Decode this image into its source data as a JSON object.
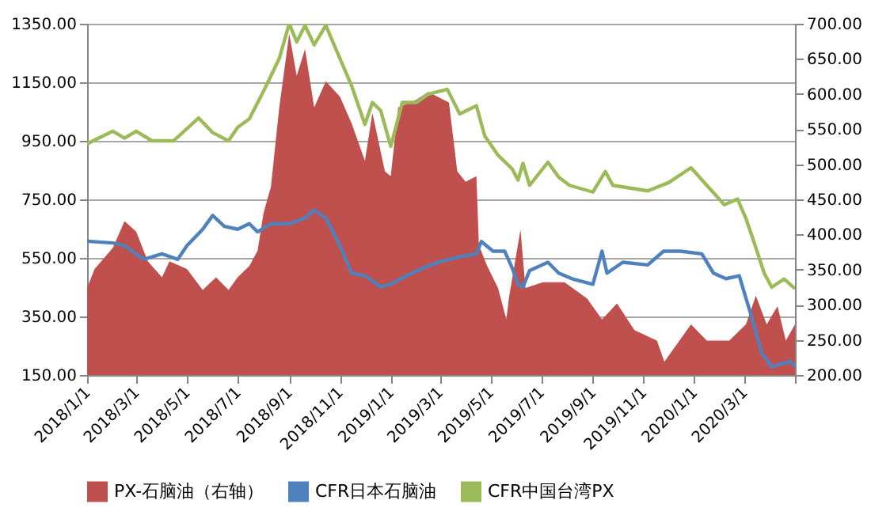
{
  "chart_data": {
    "type": "line",
    "xlim": [
      "2018-01-01",
      "2020-05-01"
    ],
    "xticks": [
      {
        "value": "2018-01-01",
        "label": "2018/1/1"
      },
      {
        "value": "2018-03-01",
        "label": "2018/3/1"
      },
      {
        "value": "2018-05-01",
        "label": "2018/5/1"
      },
      {
        "value": "2018-07-01",
        "label": "2018/7/1"
      },
      {
        "value": "2018-09-01",
        "label": "2018/9/1"
      },
      {
        "value": "2018-11-01",
        "label": "2018/11/1"
      },
      {
        "value": "2019-01-01",
        "label": "2019/1/1"
      },
      {
        "value": "2019-03-01",
        "label": "2019/3/1"
      },
      {
        "value": "2019-05-01",
        "label": "2019/5/1"
      },
      {
        "value": "2019-07-01",
        "label": "2019/7/1"
      },
      {
        "value": "2019-09-01",
        "label": "2019/9/1"
      },
      {
        "value": "2019-11-01",
        "label": "2019/11/1"
      },
      {
        "value": "2020-01-01",
        "label": "2020/1/1"
      },
      {
        "value": "2020-03-01",
        "label": "2020/3/1"
      },
      {
        "value": "2020-05-01",
        "label": null
      }
    ],
    "ylim": [
      150,
      1350
    ],
    "yticks": [
      {
        "value": 150,
        "label": "150.00"
      },
      {
        "value": 350,
        "label": "350.00"
      },
      {
        "value": 550,
        "label": "550.00"
      },
      {
        "value": 750,
        "label": "750.00"
      },
      {
        "value": 950,
        "label": "950.00"
      },
      {
        "value": 1150,
        "label": "1150.00"
      },
      {
        "value": 1350,
        "label": "1350.00"
      }
    ],
    "y2lim": [
      200,
      700
    ],
    "y2ticks": [
      {
        "value": 200,
        "label": "200.00"
      },
      {
        "value": 250,
        "label": "250.00"
      },
      {
        "value": 300,
        "label": "300.00"
      },
      {
        "value": 350,
        "label": "350.00"
      },
      {
        "value": 400,
        "label": "400.00"
      },
      {
        "value": 450,
        "label": "450.00"
      },
      {
        "value": 500,
        "label": "500.00"
      },
      {
        "value": 550,
        "label": "550.00"
      },
      {
        "value": 600,
        "label": "600.00"
      },
      {
        "value": 650,
        "label": "650.00"
      },
      {
        "value": 700,
        "label": "700.00"
      }
    ],
    "grid": "y",
    "legend": "bottom",
    "marker": "none",
    "series": [
      {
        "name": "PX-石脑油（右轴）",
        "type": "area",
        "axis": "y2",
        "color": "#c0504d",
        "x": [
          "2018-01-01",
          "2018-01-10",
          "2018-02-01",
          "2018-02-15",
          "2018-03-01",
          "2018-03-15",
          "2018-04-01",
          "2018-04-10",
          "2018-05-01",
          "2018-05-20",
          "2018-06-05",
          "2018-06-20",
          "2018-07-01",
          "2018-07-15",
          "2018-07-25",
          "2018-08-01",
          "2018-08-10",
          "2018-08-20",
          "2018-09-01",
          "2018-09-10",
          "2018-09-20",
          "2018-10-01",
          "2018-10-15",
          "2018-11-01",
          "2018-11-15",
          "2018-12-01",
          "2018-12-10",
          "2018-12-25",
          "2019-01-01",
          "2019-01-10",
          "2019-02-01",
          "2019-02-15",
          "2019-03-12",
          "2019-03-22",
          "2019-04-01",
          "2019-04-14",
          "2019-04-17",
          "2019-04-27",
          "2019-05-10",
          "2019-05-20",
          "2019-05-23",
          "2019-06-06",
          "2019-06-12",
          "2019-07-03",
          "2019-07-29",
          "2019-08-25",
          "2019-09-12",
          "2019-09-30",
          "2019-10-21",
          "2019-11-17",
          "2019-11-26",
          "2019-12-28",
          "2020-01-16",
          "2020-02-12",
          "2020-03-03",
          "2020-03-15",
          "2020-03-28",
          "2020-04-10",
          "2020-04-20",
          "2020-05-01"
        ],
        "values": [
          324,
          351,
          381,
          419,
          404,
          362,
          339,
          362,
          351,
          321,
          339,
          321,
          339,
          355,
          377,
          430,
          468,
          581,
          686,
          626,
          664,
          581,
          618,
          596,
          558,
          505,
          573,
          490,
          483,
          581,
          592,
          603,
          588,
          490,
          475,
          483,
          385,
          355,
          324,
          279,
          309,
          407,
          324,
          332,
          332,
          309,
          279,
          302,
          264,
          249,
          219,
          272,
          249,
          249,
          272,
          313,
          272,
          298,
          249,
          272
        ]
      },
      {
        "name": "CFR日本石脑油",
        "color": "#4f81bd",
        "x": [
          "2018-01-01",
          "2018-02-01",
          "2018-02-15",
          "2018-03-10",
          "2018-04-01",
          "2018-04-20",
          "2018-05-01",
          "2018-05-20",
          "2018-06-01",
          "2018-06-15",
          "2018-07-01",
          "2018-07-15",
          "2018-07-25",
          "2018-08-10",
          "2018-09-01",
          "2018-09-20",
          "2018-10-01",
          "2018-10-15",
          "2018-11-01",
          "2018-11-15",
          "2018-12-01",
          "2018-12-20",
          "2019-01-01",
          "2019-01-20",
          "2019-02-10",
          "2019-02-28",
          "2019-03-25",
          "2019-04-14",
          "2019-04-20",
          "2019-05-04",
          "2019-05-18",
          "2019-05-27",
          "2019-06-03",
          "2019-06-09",
          "2019-06-17",
          "2019-07-09",
          "2019-07-22",
          "2019-08-07",
          "2019-09-01",
          "2019-09-12",
          "2019-09-18",
          "2019-10-07",
          "2019-11-06",
          "2019-11-25",
          "2019-12-15",
          "2020-01-10",
          "2020-01-24",
          "2020-02-08",
          "2020-02-24",
          "2020-03-08",
          "2020-03-22",
          "2020-04-03",
          "2020-04-25",
          "2020-05-01"
        ],
        "values": [
          607,
          601,
          592,
          545,
          564,
          545,
          592,
          648,
          695,
          658,
          648,
          667,
          639,
          667,
          667,
          686,
          714,
          686,
          592,
          498,
          489,
          451,
          460,
          489,
          517,
          536,
          554,
          564,
          606,
          573,
          573,
          516,
          460,
          451,
          507,
          535,
          498,
          479,
          460,
          573,
          498,
          535,
          526,
          573,
          573,
          564,
          498,
          479,
          489,
          366,
          225,
          178,
          197,
          178
        ]
      },
      {
        "name": "CFR中国台湾PX",
        "color": "#9bbb59",
        "x": [
          "2018-01-01",
          "2018-02-01",
          "2018-02-15",
          "2018-03-01",
          "2018-03-20",
          "2018-04-15",
          "2018-05-15",
          "2018-06-01",
          "2018-06-20",
          "2018-07-01",
          "2018-07-15",
          "2018-08-01",
          "2018-08-20",
          "2018-09-01",
          "2018-09-10",
          "2018-09-20",
          "2018-10-01",
          "2018-10-15",
          "2018-11-01",
          "2018-11-15",
          "2018-12-01",
          "2018-12-10",
          "2018-12-20",
          "2019-01-01",
          "2019-01-15",
          "2019-02-01",
          "2019-02-15",
          "2019-03-10",
          "2019-03-25",
          "2019-04-14",
          "2019-04-24",
          "2019-05-10",
          "2019-05-27",
          "2019-06-03",
          "2019-06-09",
          "2019-06-17",
          "2019-07-09",
          "2019-07-22",
          "2019-08-04",
          "2019-09-01",
          "2019-09-16",
          "2019-09-25",
          "2019-11-06",
          "2019-12-01",
          "2019-12-28",
          "2020-01-16",
          "2020-02-06",
          "2020-02-22",
          "2020-03-03",
          "2020-03-12",
          "2020-03-25",
          "2020-04-03",
          "2020-04-18",
          "2020-05-01"
        ],
        "values": [
          940,
          983,
          959,
          983,
          950,
          950,
          1028,
          978,
          950,
          996,
          1025,
          1119,
          1231,
          1350,
          1288,
          1344,
          1278,
          1344,
          1231,
          1138,
          1006,
          1081,
          1053,
          931,
          1081,
          1081,
          1109,
          1126,
          1042,
          1070,
          967,
          901,
          854,
          816,
          873,
          798,
          877,
          826,
          798,
          775,
          845,
          798,
          779,
          807,
          858,
          798,
          732,
          751,
          685,
          610,
          498,
          450,
          478,
          445
        ]
      }
    ]
  }
}
